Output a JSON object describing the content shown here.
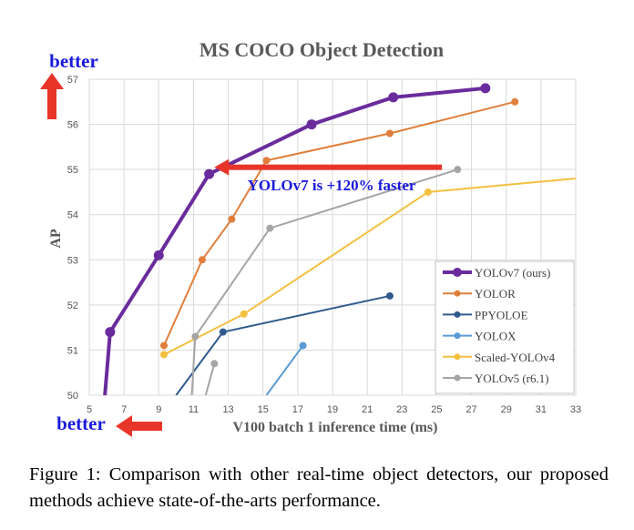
{
  "chart_data": {
    "type": "line",
    "title": "MS COCO Object Detection",
    "xlabel": "V100 batch 1 inference time (ms)",
    "ylabel": "AP",
    "xlim": [
      5,
      33
    ],
    "ylim": [
      50,
      57
    ],
    "xticks": [
      5,
      7,
      9,
      11,
      13,
      15,
      17,
      19,
      21,
      23,
      25,
      27,
      29,
      31,
      33
    ],
    "yticks": [
      50,
      51,
      52,
      53,
      54,
      55,
      56,
      57
    ],
    "grid": true,
    "legend": "bottom-right",
    "series": [
      {
        "name": "YOLOv7 (ours)",
        "color": "#6a2c9c",
        "width": 4,
        "x": [
          5.9,
          6.2,
          9.0,
          11.9,
          17.8,
          22.5,
          27.8
        ],
        "y": [
          50,
          51.4,
          53.1,
          54.9,
          56.0,
          56.6,
          56.8
        ]
      },
      {
        "name": "YOLOR",
        "color": "#e07f3c",
        "width": 2,
        "x": [
          9.3,
          11.5,
          13.2,
          15.2,
          22.3,
          29.5
        ],
        "y": [
          51.1,
          53.0,
          53.9,
          55.2,
          55.8,
          56.5
        ]
      },
      {
        "name": "PPYOLOE",
        "color": "#2f5a8e",
        "width": 2,
        "x": [
          10.0,
          12.7,
          22.3
        ],
        "y": [
          50,
          51.4,
          52.2
        ]
      },
      {
        "name": "YOLOX",
        "color": "#5b9bd5",
        "width": 2,
        "x": [
          15.2,
          17.3
        ],
        "y": [
          50,
          51.1
        ]
      },
      {
        "name": "Scaled-YOLOv4",
        "color": "#f4c040",
        "width": 2,
        "x": [
          9.3,
          13.9,
          24.5,
          33.0
        ],
        "y": [
          50.9,
          51.8,
          54.5,
          54.8
        ]
      },
      {
        "name": "YOLOv5 (r6.1)",
        "color": "#a5a5a5",
        "width": 2,
        "x": [
          10.9,
          11.1,
          15.4,
          26.2
        ],
        "y": [
          50,
          51.3,
          53.7,
          55.0
        ]
      },
      {
        "name": "",
        "color": "#a5a5a5",
        "width": 2,
        "x": [
          11.7,
          12.2
        ],
        "y": [
          50,
          50.7
        ]
      }
    ],
    "legend_markers": {
      "Scaled-YOLOv4": "circle"
    },
    "annotations": {
      "speed_text": "YOLOv7 is +120% faster",
      "arrow_from": [
        25.3,
        55.05
      ],
      "arrow_to": [
        12.2,
        55.05
      ],
      "better_top": "better",
      "better_bottom": "better"
    },
    "colors": {
      "arrow": "#e8352a",
      "better_text": "#1a1adc"
    }
  },
  "caption": "Figure 1: Comparison with other real-time object detectors, our proposed methods achieve state-of-the-arts performance."
}
